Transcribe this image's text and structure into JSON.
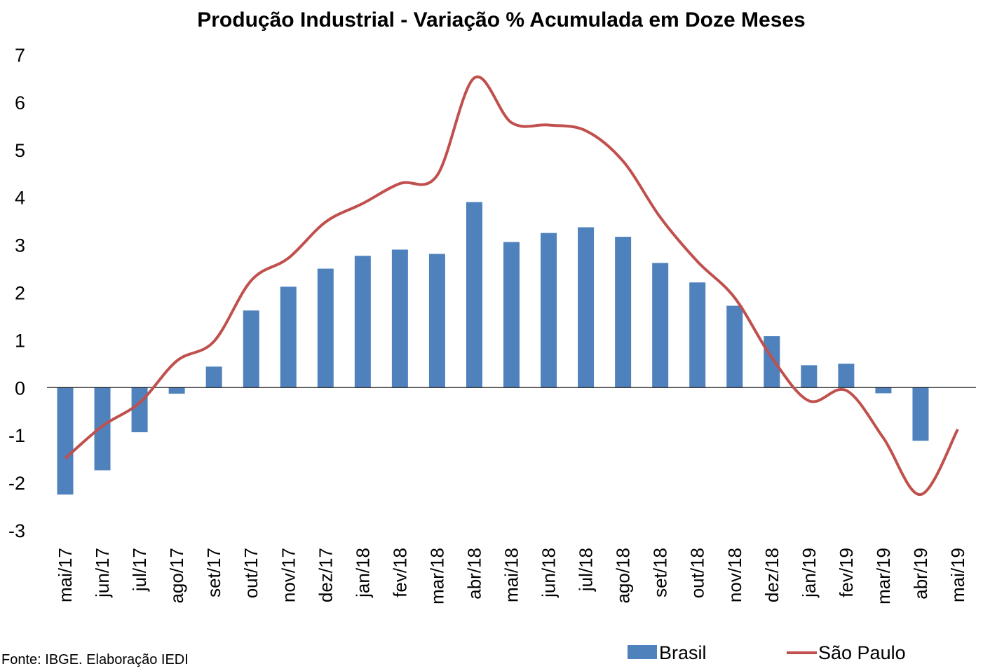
{
  "chart_data": {
    "type": "bar",
    "title": "Produção Industrial - Variação % Acumulada em Doze Meses",
    "xlabel": "",
    "ylabel": "",
    "ylim": [
      -3,
      7
    ],
    "yticks": [
      "7",
      "6",
      "5",
      "4",
      "3",
      "2",
      "1",
      "0",
      "-1",
      "-2",
      "-3"
    ],
    "categories": [
      "mai/17",
      "jun/17",
      "jul/17",
      "ago/17",
      "set/17",
      "out/17",
      "nov/17",
      "dez/17",
      "jan/18",
      "fev/18",
      "mar/18",
      "abr/18",
      "mai/18",
      "jun/18",
      "jul/18",
      "ago/18",
      "set/18",
      "out/18",
      "nov/18",
      "dez/18",
      "jan/19",
      "fev/19",
      "mar/19",
      "abr/19",
      "mai/19"
    ],
    "series": [
      {
        "name": "Brasil",
        "type": "bar",
        "color": "#4F81BD",
        "values": [
          -2.25,
          -1.74,
          -0.94,
          -0.13,
          0.44,
          1.62,
          2.12,
          2.5,
          2.77,
          2.9,
          2.81,
          3.9,
          3.06,
          3.25,
          3.37,
          3.17,
          2.62,
          2.21,
          1.72,
          1.08,
          0.47,
          0.5,
          -0.12,
          -1.12,
          null
        ]
      },
      {
        "name": "São Paulo",
        "type": "line",
        "color": "#C0504D",
        "values": [
          -1.49,
          -0.81,
          -0.32,
          0.56,
          0.97,
          2.25,
          2.72,
          3.48,
          3.87,
          4.29,
          4.46,
          6.51,
          5.57,
          5.52,
          5.4,
          4.76,
          3.58,
          2.65,
          1.89,
          0.63,
          -0.28,
          -0.06,
          -1.06,
          -2.25,
          -0.88
        ]
      }
    ],
    "legend_position": "bottom-right",
    "grid": false,
    "source": "Fonte: IBGE. Elaboração IEDI"
  }
}
